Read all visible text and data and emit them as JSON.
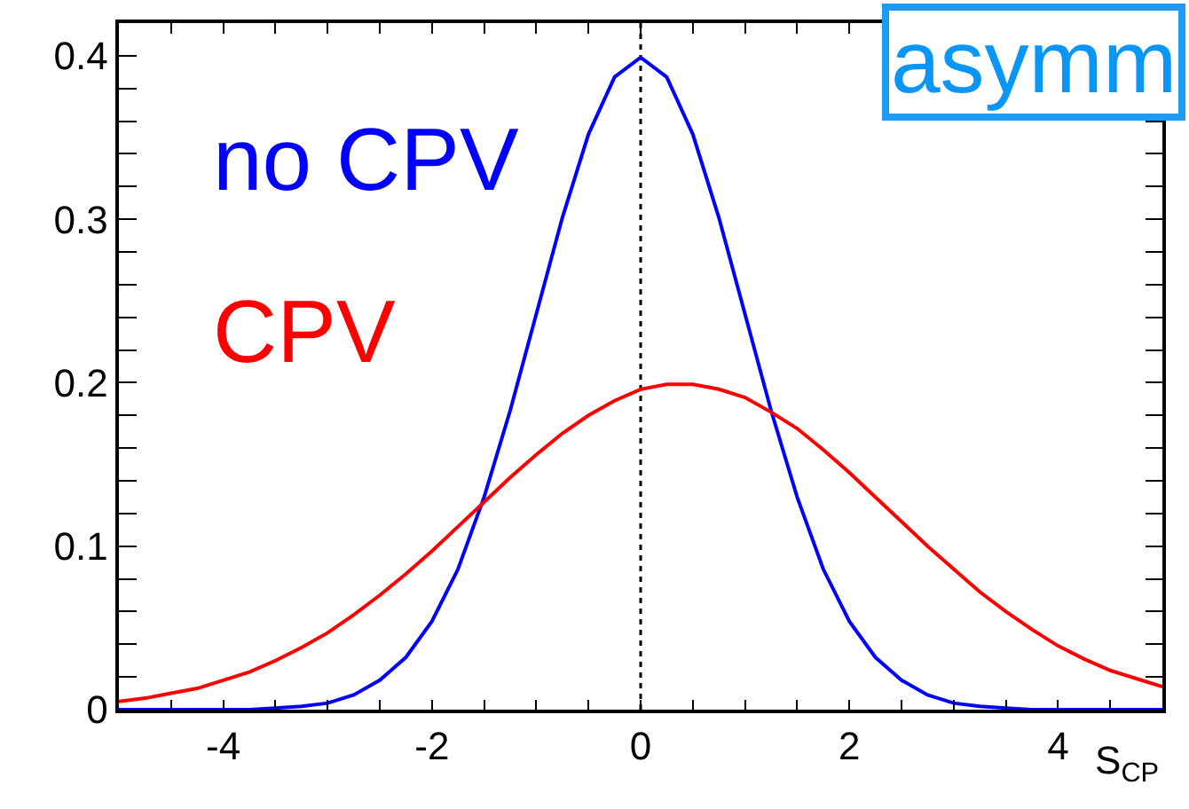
{
  "chart_data": {
    "type": "line",
    "xlabel": "S$_{CP}$",
    "annotations": [
      "asymm"
    ],
    "x": [
      -5,
      -4.75,
      -4.5,
      -4.25,
      -4,
      -3.75,
      -3.5,
      -3.25,
      -3,
      -2.75,
      -2.5,
      -2.25,
      -2,
      -1.75,
      -1.5,
      -1.25,
      -1,
      -0.75,
      -0.5,
      -0.25,
      0,
      0.25,
      0.5,
      0.75,
      1,
      1.25,
      1.5,
      1.75,
      2,
      2.25,
      2.5,
      2.75,
      3,
      3.25,
      3.5,
      3.75,
      4,
      4.25,
      4.5,
      4.75,
      5
    ],
    "series": [
      {
        "name": "no CPV",
        "color": "#0000ff",
        "values": [
          0.0,
          0.0,
          0.0,
          0.0,
          0.0,
          0.0,
          0.001,
          0.002,
          0.004,
          0.009,
          0.018,
          0.032,
          0.054,
          0.086,
          0.13,
          0.183,
          0.242,
          0.301,
          0.352,
          0.387,
          0.399,
          0.387,
          0.352,
          0.301,
          0.242,
          0.183,
          0.13,
          0.086,
          0.054,
          0.032,
          0.018,
          0.009,
          0.004,
          0.002,
          0.001,
          0.0,
          0.0,
          0.0,
          0.0,
          0.0,
          0.0
        ]
      },
      {
        "name": "CPV",
        "color": "#ff0000",
        "values": [
          0.005,
          0.007,
          0.01,
          0.013,
          0.018,
          0.023,
          0.03,
          0.038,
          0.047,
          0.058,
          0.07,
          0.083,
          0.097,
          0.112,
          0.127,
          0.142,
          0.156,
          0.169,
          0.18,
          0.189,
          0.196,
          0.199,
          0.199,
          0.196,
          0.191,
          0.182,
          0.172,
          0.159,
          0.145,
          0.13,
          0.115,
          0.1,
          0.086,
          0.072,
          0.06,
          0.049,
          0.039,
          0.031,
          0.024,
          0.019,
          0.014
        ]
      }
    ],
    "xlim": [
      -5,
      5
    ],
    "xticks": [
      {
        "value": -4.5,
        "label": null
      },
      -4,
      {
        "value": -3.5,
        "label": null
      },
      {
        "value": -3,
        "label": null
      },
      {
        "value": -2.5,
        "label": null
      },
      -2,
      {
        "value": -1.5,
        "label": null
      },
      {
        "value": -1,
        "label": null
      },
      {
        "value": -0.5,
        "label": null
      },
      0,
      {
        "value": 0.5,
        "label": null
      },
      {
        "value": 1,
        "label": null
      },
      {
        "value": 1.5,
        "label": null
      },
      2,
      {
        "value": 2.5,
        "label": null
      },
      {
        "value": 3,
        "label": null
      },
      {
        "value": 3.5,
        "label": null
      },
      4,
      {
        "value": 4.5,
        "label": null
      }
    ],
    "ylim": [
      0,
      0.42
    ],
    "yticks": [
      0,
      {
        "value": 0.02,
        "label": null
      },
      {
        "value": 0.04,
        "label": null
      },
      {
        "value": 0.06,
        "label": null
      },
      {
        "value": 0.08,
        "label": null
      },
      0.1,
      {
        "value": 0.12,
        "label": null
      },
      {
        "value": 0.14,
        "label": null
      },
      {
        "value": 0.16,
        "label": null
      },
      {
        "value": 0.18,
        "label": null
      },
      0.2,
      {
        "value": 0.22,
        "label": null
      },
      {
        "value": 0.24,
        "label": null
      },
      {
        "value": 0.26,
        "label": null
      },
      {
        "value": 0.28,
        "label": null
      },
      0.3,
      {
        "value": 0.32,
        "label": null
      },
      {
        "value": 0.34,
        "label": null
      },
      {
        "value": 0.36,
        "label": null
      },
      {
        "value": 0.38,
        "label": null
      },
      0.4
    ],
    "ref_lines": [
      {
        "axis": "x",
        "value": 0,
        "color": "#000000",
        "line_style": "dotted"
      }
    ],
    "grid": false,
    "legend": false
  }
}
